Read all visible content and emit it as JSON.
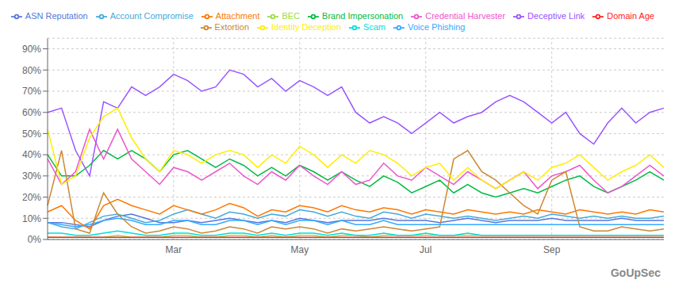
{
  "chart_data": {
    "type": "line",
    "annotations": [
      "GoUpSec"
    ],
    "categories": [
      null,
      null,
      null,
      null,
      null,
      null,
      null,
      null,
      null,
      "Mar",
      null,
      null,
      null,
      null,
      null,
      null,
      null,
      null,
      "May",
      null,
      null,
      null,
      null,
      null,
      null,
      null,
      null,
      "Jul",
      null,
      null,
      null,
      null,
      null,
      null,
      null,
      null,
      "Sep",
      null,
      null,
      null,
      null,
      null,
      null,
      null,
      null
    ],
    "ylim": [
      0,
      95
    ],
    "yticks": [
      {
        "value": 0,
        "label": "0%"
      },
      {
        "value": 10,
        "label": "10%"
      },
      {
        "value": 20,
        "label": "20%"
      },
      {
        "value": 30,
        "label": "30%"
      },
      {
        "value": 40,
        "label": "40%"
      },
      {
        "value": 50,
        "label": "50%"
      },
      {
        "value": 60,
        "label": "60%"
      },
      {
        "value": 70,
        "label": "70%"
      },
      {
        "value": 80,
        "label": "80%"
      },
      {
        "value": 90,
        "label": "90%"
      }
    ],
    "grid": true,
    "legend": "top",
    "series": [
      {
        "name": "ASN Reputation",
        "color": "#5577dd",
        "values": [
          8,
          8,
          7,
          6,
          9,
          11,
          12,
          10,
          8,
          8,
          9,
          8,
          9,
          10,
          9,
          8,
          9,
          8,
          10,
          9,
          8,
          9,
          9,
          9,
          10,
          9,
          9,
          9,
          8,
          9,
          10,
          9,
          8,
          9,
          9,
          9,
          10,
          9,
          9,
          9,
          9,
          10,
          9,
          9,
          9
        ]
      },
      {
        "name": "Account Compromise",
        "color": "#44aadd",
        "values": [
          8,
          6,
          5,
          8,
          11,
          12,
          10,
          8,
          9,
          12,
          14,
          12,
          10,
          13,
          12,
          10,
          12,
          11,
          14,
          13,
          11,
          13,
          11,
          10,
          13,
          12,
          10,
          12,
          11,
          10,
          11,
          10,
          9,
          10,
          11,
          10,
          12,
          11,
          10,
          11,
          10,
          11,
          10,
          10,
          11
        ]
      },
      {
        "name": "Attachment",
        "color": "#ff7700",
        "values": [
          13,
          16,
          9,
          5,
          16,
          19,
          16,
          14,
          12,
          16,
          14,
          12,
          14,
          17,
          15,
          11,
          14,
          13,
          16,
          15,
          13,
          16,
          14,
          13,
          15,
          14,
          12,
          14,
          13,
          12,
          14,
          13,
          12,
          13,
          12,
          14,
          13,
          12,
          14,
          13,
          12,
          13,
          12,
          14,
          13
        ]
      },
      {
        "name": "BEC",
        "color": "#99dd44",
        "values": [
          1,
          1,
          1,
          1,
          1,
          2,
          1,
          1,
          1,
          2,
          2,
          1,
          1,
          2,
          2,
          1,
          2,
          1,
          2,
          2,
          1,
          2,
          2,
          1,
          2,
          2,
          2,
          2,
          2,
          2,
          2,
          2,
          2,
          2,
          2,
          2,
          2,
          2,
          2,
          2,
          2,
          2,
          2,
          2,
          2
        ]
      },
      {
        "name": "Brand Impersonation",
        "color": "#00bb44",
        "values": [
          40,
          30,
          30,
          35,
          42,
          38,
          42,
          38,
          32,
          40,
          42,
          38,
          34,
          38,
          35,
          30,
          34,
          30,
          35,
          32,
          28,
          32,
          28,
          25,
          30,
          27,
          22,
          25,
          28,
          22,
          26,
          22,
          20,
          22,
          24,
          22,
          25,
          28,
          30,
          25,
          22,
          25,
          28,
          32,
          28
        ]
      },
      {
        "name": "Credential Harvester",
        "color": "#ee55cc",
        "values": [
          38,
          26,
          32,
          52,
          38,
          52,
          38,
          32,
          26,
          34,
          32,
          28,
          32,
          36,
          30,
          26,
          32,
          28,
          35,
          30,
          26,
          32,
          26,
          28,
          36,
          30,
          28,
          34,
          30,
          26,
          32,
          28,
          24,
          28,
          32,
          24,
          30,
          32,
          35,
          28,
          22,
          25,
          30,
          35,
          30
        ]
      },
      {
        "name": "Deceptive Link",
        "color": "#9955ff",
        "values": [
          60,
          62,
          42,
          30,
          65,
          62,
          72,
          68,
          72,
          78,
          75,
          70,
          72,
          80,
          78,
          72,
          76,
          70,
          75,
          72,
          68,
          72,
          60,
          55,
          58,
          55,
          50,
          55,
          60,
          55,
          58,
          60,
          65,
          68,
          65,
          60,
          55,
          60,
          50,
          45,
          55,
          62,
          55,
          60,
          62
        ]
      },
      {
        "name": "Domain Age",
        "color": "#ff2222",
        "values": [
          1,
          1,
          1,
          1,
          1,
          1,
          1,
          1,
          1,
          1,
          1,
          1,
          1,
          1,
          1,
          1,
          1,
          1,
          1,
          1,
          1,
          1,
          1,
          1,
          1,
          1,
          1,
          1,
          1,
          1,
          1,
          1,
          1,
          1,
          1,
          1,
          1,
          1,
          1,
          1,
          1,
          1,
          1,
          1,
          1
        ]
      },
      {
        "name": "Extortion",
        "color": "#cc8833",
        "values": [
          16,
          42,
          5,
          3,
          22,
          12,
          6,
          3,
          4,
          6,
          5,
          3,
          4,
          6,
          5,
          3,
          6,
          5,
          6,
          5,
          3,
          5,
          4,
          5,
          6,
          5,
          4,
          5,
          6,
          38,
          42,
          32,
          28,
          22,
          16,
          12,
          28,
          32,
          6,
          4,
          4,
          6,
          5,
          4,
          5
        ]
      },
      {
        "name": "Identity Deception",
        "color": "#ffee00",
        "values": [
          52,
          26,
          30,
          48,
          58,
          62,
          48,
          38,
          32,
          42,
          40,
          36,
          40,
          42,
          40,
          34,
          40,
          36,
          44,
          40,
          34,
          40,
          36,
          42,
          40,
          36,
          30,
          34,
          36,
          28,
          34,
          28,
          24,
          28,
          32,
          28,
          34,
          36,
          40,
          34,
          28,
          32,
          35,
          40,
          34
        ]
      },
      {
        "name": "Scam",
        "color": "#00dddd",
        "values": [
          3,
          3,
          2,
          2,
          3,
          4,
          3,
          2,
          2,
          3,
          3,
          2,
          2,
          3,
          3,
          2,
          3,
          2,
          3,
          3,
          2,
          3,
          2,
          2,
          3,
          2,
          2,
          3,
          2,
          2,
          3,
          2,
          2,
          2,
          2,
          2,
          2,
          2,
          2,
          2,
          2,
          2,
          2,
          2,
          2
        ]
      },
      {
        "name": "Voice Phishing",
        "color": "#33aaff",
        "values": [
          8,
          7,
          6,
          7,
          9,
          10,
          9,
          7,
          7,
          9,
          9,
          7,
          7,
          9,
          9,
          7,
          9,
          7,
          9,
          9,
          7,
          9,
          7,
          7,
          9,
          7,
          7,
          7,
          7,
          7,
          7,
          7,
          7,
          7,
          7,
          7,
          7,
          7,
          7,
          7,
          7,
          7,
          7,
          7,
          7
        ]
      }
    ]
  }
}
